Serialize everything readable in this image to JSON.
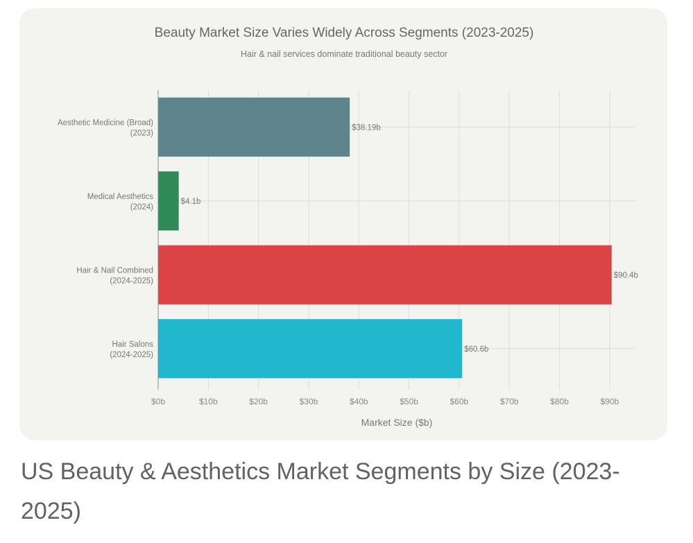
{
  "chart_data": {
    "type": "bar",
    "orientation": "horizontal",
    "title": "Beauty Market Size Varies Widely Across Segments (2023-2025)",
    "subtitle": "Hair & nail services dominate traditional beauty sector",
    "xlabel": "Market Size ($b)",
    "ylabel": "",
    "xlim": [
      0,
      95
    ],
    "xticks": [
      0,
      10,
      20,
      30,
      40,
      50,
      60,
      70,
      80,
      90
    ],
    "xtick_labels": [
      "$0b",
      "$10b",
      "$20b",
      "$30b",
      "$40b",
      "$50b",
      "$60b",
      "$70b",
      "$80b",
      "$90b"
    ],
    "grid": true,
    "categories": [
      [
        "Aesthetic Medicine (Broad)",
        "(2023)"
      ],
      [
        "Medical Aesthetics",
        "(2024)"
      ],
      [
        "Hair & Nail Combined",
        "(2024-2025)"
      ],
      [
        "Hair Salons",
        "(2024-2025)"
      ]
    ],
    "values": [
      38.19,
      4.1,
      90.4,
      60.6
    ],
    "data_labels": [
      "$38.19b",
      "$4.1b",
      "$90.4b",
      "$60.6b"
    ],
    "colors": [
      "#5e858b",
      "#2e8a57",
      "#db4545",
      "#21b8cd"
    ]
  },
  "caption": "US Beauty & Aesthetics Market Segments by Size (2023-2025)"
}
